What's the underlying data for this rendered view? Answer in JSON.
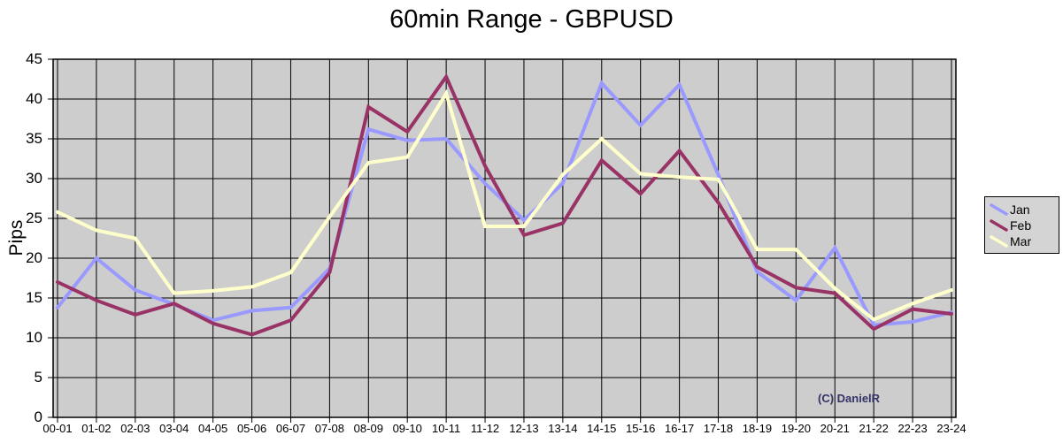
{
  "chart_data": {
    "type": "line",
    "title": "60min Range - GBPUSD",
    "xlabel": "",
    "ylabel": "Pips",
    "ylim": [
      0,
      45
    ],
    "y_ticks": [
      0,
      5,
      10,
      15,
      20,
      25,
      30,
      35,
      40,
      45
    ],
    "grid": true,
    "legend_position": "right",
    "plot_bg_color": "#cdcdcd",
    "gridline_color": "#000000",
    "categories": [
      "00-01",
      "01-02",
      "02-03",
      "03-04",
      "04-05",
      "05-06",
      "06-07",
      "07-08",
      "08-09",
      "09-10",
      "10-11",
      "11-12",
      "12-13",
      "13-14",
      "14-15",
      "15-16",
      "16-17",
      "17-18",
      "18-19",
      "19-20",
      "20-21",
      "21-22",
      "22-23",
      "23-24"
    ],
    "series": [
      {
        "name": "Jan",
        "color": "#9999FF",
        "values": [
          13.8,
          20,
          16,
          14.2,
          12.2,
          13.4,
          13.8,
          18.7,
          36.2,
          34.8,
          35,
          29.4,
          24.8,
          29.4,
          42,
          36.7,
          41.8,
          30.5,
          18.3,
          14.7,
          21.3,
          11.6,
          12,
          13.2
        ]
      },
      {
        "name": "Feb",
        "color": "#993366",
        "values": [
          17,
          14.7,
          12.9,
          14.3,
          11.8,
          10.4,
          12.2,
          18.2,
          39,
          35.9,
          42.8,
          31.6,
          22.9,
          24.4,
          32.3,
          28.1,
          33.5,
          27,
          18.9,
          16.3,
          15.6,
          11.1,
          13.6,
          13
        ]
      },
      {
        "name": "Mar",
        "color": "#FFFFCC",
        "values": [
          25.8,
          23.5,
          22.5,
          15.6,
          15.9,
          16.4,
          18.2,
          25.2,
          32,
          32.7,
          40.7,
          24,
          24,
          30.5,
          35,
          30.6,
          30.2,
          29.9,
          21.1,
          21.1,
          16.2,
          12.3,
          14.3,
          16
        ]
      }
    ],
    "annotations": [
      {
        "text": "(C) DanielR",
        "color": "#333366"
      }
    ]
  }
}
